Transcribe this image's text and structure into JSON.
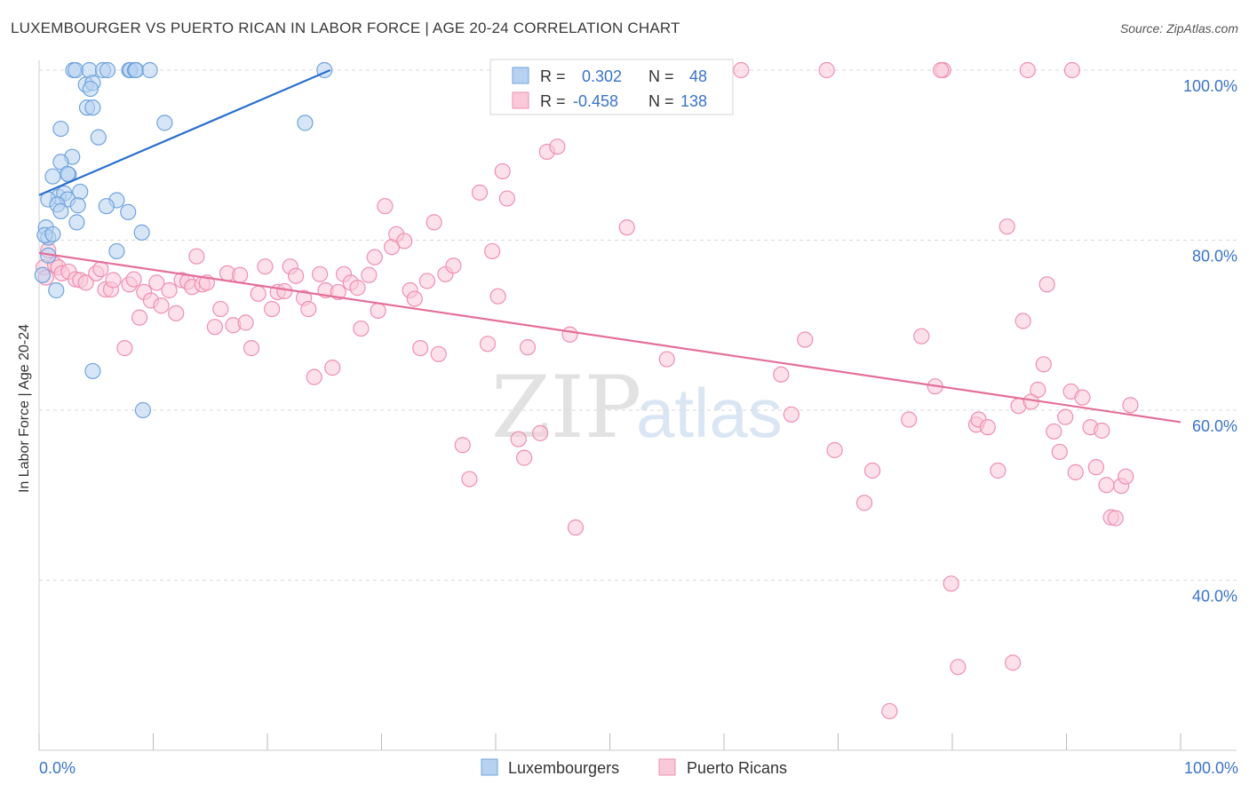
{
  "title": "LUXEMBOURGER VS PUERTO RICAN IN LABOR FORCE | AGE 20-24 CORRELATION CHART",
  "source": "Source: ZipAtlas.com",
  "watermark": {
    "zip": "ZIP",
    "atlas": "atlas"
  },
  "colors": {
    "blue": "#6fa3dd",
    "blue_fill": "#b7d1f0",
    "blue_line": "#2a6fcf",
    "pink": "#ef8fb0",
    "pink_fill": "#f9c9d9",
    "pink_line": "#e46f9a",
    "axis_text": "#3a73c9",
    "grid": "#d9d9d9"
  },
  "legend": {
    "rows": [
      {
        "r_label": "R =",
        "r_value": "0.302",
        "n_label": "N =",
        "n_value": "48"
      },
      {
        "r_label": "R =",
        "r_value": "-0.458",
        "n_label": "N =",
        "n_value": "138"
      }
    ]
  },
  "chart_data": {
    "type": "scatter",
    "title": "LUXEMBOURGER VS PUERTO RICAN IN LABOR FORCE | AGE 20-24 CORRELATION CHART",
    "xlabel": "",
    "ylabel": "In Labor Force | Age 20-24",
    "xlim": [
      0,
      100
    ],
    "ylim": [
      20,
      101.5
    ],
    "x_tick_labels": [
      "0.0%",
      "100.0%"
    ],
    "y_ticks": [
      40,
      60,
      80,
      100
    ],
    "y_tick_labels": [
      "40.0%",
      "60.0%",
      "80.0%",
      "100.0%"
    ],
    "bottom_legend": [
      "Luxembourgers",
      "Puerto Ricans"
    ],
    "series": [
      {
        "name": "Luxembourgers",
        "trend": {
          "x": [
            0,
            25.5
          ],
          "y": [
            85.3,
            100.0
          ]
        },
        "points": [
          [
            3.0,
            100
          ],
          [
            3.2,
            100
          ],
          [
            4.4,
            100
          ],
          [
            5.6,
            100
          ],
          [
            6.0,
            100
          ],
          [
            7.9,
            100
          ],
          [
            8.0,
            100
          ],
          [
            8.4,
            100
          ],
          [
            8.5,
            100
          ],
          [
            9.7,
            100
          ],
          [
            25.0,
            100
          ],
          [
            4.1,
            98.3
          ],
          [
            4.7,
            98.5
          ],
          [
            4.5,
            97.8
          ],
          [
            4.2,
            95.6
          ],
          [
            4.7,
            95.6
          ],
          [
            1.9,
            93.1
          ],
          [
            5.2,
            92.1
          ],
          [
            11.0,
            93.8
          ],
          [
            23.3,
            93.8
          ],
          [
            2.9,
            89.8
          ],
          [
            1.9,
            89.2
          ],
          [
            2.6,
            87.7
          ],
          [
            2.5,
            87.8
          ],
          [
            1.2,
            87.5
          ],
          [
            3.6,
            85.7
          ],
          [
            1.7,
            85.1
          ],
          [
            2.2,
            85.5
          ],
          [
            2.5,
            84.8
          ],
          [
            0.8,
            84.8
          ],
          [
            6.8,
            84.7
          ],
          [
            1.6,
            84.2
          ],
          [
            3.4,
            84.1
          ],
          [
            5.9,
            84.0
          ],
          [
            1.9,
            83.4
          ],
          [
            7.8,
            83.3
          ],
          [
            3.3,
            82.1
          ],
          [
            0.6,
            81.5
          ],
          [
            0.8,
            80.3
          ],
          [
            0.5,
            80.6
          ],
          [
            1.2,
            80.7
          ],
          [
            9.0,
            80.9
          ],
          [
            0.8,
            78.2
          ],
          [
            6.8,
            78.7
          ],
          [
            1.5,
            74.1
          ],
          [
            4.7,
            64.6
          ],
          [
            9.1,
            60.0
          ],
          [
            0.3,
            75.9
          ]
        ]
      },
      {
        "name": "Puerto Ricans",
        "trend": {
          "x": [
            0,
            100
          ],
          "y": [
            78.5,
            58.6
          ]
        },
        "points": [
          [
            0.4,
            76.8
          ],
          [
            0.6,
            75.6
          ],
          [
            0.8,
            78.8
          ],
          [
            1.4,
            77.1
          ],
          [
            1.7,
            76.8
          ],
          [
            2.0,
            76.1
          ],
          [
            2.6,
            76.3
          ],
          [
            3.2,
            75.4
          ],
          [
            3.6,
            75.3
          ],
          [
            4.1,
            75.0
          ],
          [
            5.0,
            76.1
          ],
          [
            5.4,
            76.6
          ],
          [
            5.8,
            74.2
          ],
          [
            6.3,
            74.2
          ],
          [
            6.5,
            75.3
          ],
          [
            7.5,
            67.3
          ],
          [
            7.9,
            74.8
          ],
          [
            8.3,
            75.4
          ],
          [
            8.8,
            70.9
          ],
          [
            9.2,
            73.9
          ],
          [
            9.8,
            72.9
          ],
          [
            10.3,
            75.0
          ],
          [
            10.7,
            72.3
          ],
          [
            11.4,
            74.1
          ],
          [
            12.0,
            71.4
          ],
          [
            12.5,
            75.3
          ],
          [
            13.0,
            75.1
          ],
          [
            13.4,
            74.5
          ],
          [
            13.8,
            78.1
          ],
          [
            14.3,
            74.8
          ],
          [
            14.7,
            75.0
          ],
          [
            15.4,
            69.8
          ],
          [
            15.9,
            71.9
          ],
          [
            16.5,
            76.1
          ],
          [
            17.0,
            70.0
          ],
          [
            17.6,
            75.9
          ],
          [
            18.1,
            70.3
          ],
          [
            18.6,
            67.3
          ],
          [
            19.2,
            73.7
          ],
          [
            19.8,
            76.9
          ],
          [
            20.4,
            71.9
          ],
          [
            20.9,
            73.9
          ],
          [
            21.5,
            74.0
          ],
          [
            22.0,
            76.9
          ],
          [
            22.5,
            75.8
          ],
          [
            23.2,
            73.2
          ],
          [
            23.6,
            71.9
          ],
          [
            24.1,
            63.9
          ],
          [
            24.6,
            76.0
          ],
          [
            25.1,
            74.1
          ],
          [
            25.7,
            65.0
          ],
          [
            26.2,
            73.9
          ],
          [
            26.7,
            76.0
          ],
          [
            27.3,
            75.0
          ],
          [
            27.9,
            74.4
          ],
          [
            28.2,
            69.6
          ],
          [
            28.9,
            75.9
          ],
          [
            29.4,
            78.0
          ],
          [
            29.7,
            71.7
          ],
          [
            30.3,
            84.0
          ],
          [
            30.9,
            79.2
          ],
          [
            31.3,
            80.7
          ],
          [
            32.0,
            79.9
          ],
          [
            32.5,
            74.1
          ],
          [
            32.9,
            73.1
          ],
          [
            33.4,
            67.3
          ],
          [
            34.0,
            75.2
          ],
          [
            34.6,
            82.1
          ],
          [
            35.0,
            66.6
          ],
          [
            35.6,
            76.0
          ],
          [
            36.3,
            77.0
          ],
          [
            37.1,
            55.9
          ],
          [
            37.7,
            51.9
          ],
          [
            38.6,
            85.6
          ],
          [
            39.3,
            67.8
          ],
          [
            39.7,
            78.7
          ],
          [
            40.2,
            73.4
          ],
          [
            40.6,
            88.1
          ],
          [
            41.0,
            84.9
          ],
          [
            42.0,
            56.6
          ],
          [
            42.5,
            54.4
          ],
          [
            42.8,
            67.4
          ],
          [
            43.9,
            57.3
          ],
          [
            44.5,
            90.4
          ],
          [
            45.4,
            91.0
          ],
          [
            46.5,
            68.9
          ],
          [
            47.0,
            46.2
          ],
          [
            48.6,
            100
          ],
          [
            50.2,
            100
          ],
          [
            51.5,
            81.5
          ],
          [
            55.0,
            66.0
          ],
          [
            61.5,
            100
          ],
          [
            65.0,
            64.2
          ],
          [
            65.9,
            59.5
          ],
          [
            67.1,
            68.3
          ],
          [
            69.0,
            100
          ],
          [
            69.7,
            55.3
          ],
          [
            72.3,
            49.1
          ],
          [
            73.0,
            52.9
          ],
          [
            74.5,
            24.6
          ],
          [
            76.2,
            58.9
          ],
          [
            77.3,
            68.7
          ],
          [
            78.5,
            62.8
          ],
          [
            79.2,
            100
          ],
          [
            79.9,
            39.6
          ],
          [
            80.5,
            29.8
          ],
          [
            82.1,
            58.3
          ],
          [
            82.3,
            58.9
          ],
          [
            83.1,
            58.0
          ],
          [
            84.0,
            52.9
          ],
          [
            84.8,
            81.6
          ],
          [
            85.3,
            30.3
          ],
          [
            85.8,
            60.5
          ],
          [
            86.2,
            70.5
          ],
          [
            86.9,
            61.0
          ],
          [
            87.5,
            62.4
          ],
          [
            88.0,
            65.4
          ],
          [
            88.3,
            74.8
          ],
          [
            88.9,
            57.5
          ],
          [
            89.4,
            55.1
          ],
          [
            89.9,
            59.2
          ],
          [
            90.4,
            62.2
          ],
          [
            90.8,
            52.7
          ],
          [
            91.4,
            61.5
          ],
          [
            92.1,
            58.0
          ],
          [
            92.6,
            53.3
          ],
          [
            93.1,
            57.6
          ],
          [
            93.5,
            51.2
          ],
          [
            93.9,
            47.4
          ],
          [
            94.3,
            47.3
          ],
          [
            94.8,
            51.1
          ],
          [
            95.2,
            52.2
          ],
          [
            95.6,
            60.6
          ],
          [
            79.0,
            100
          ],
          [
            52.5,
            100
          ],
          [
            90.5,
            100
          ],
          [
            48.0,
            100
          ],
          [
            86.6,
            100
          ]
        ]
      }
    ]
  }
}
